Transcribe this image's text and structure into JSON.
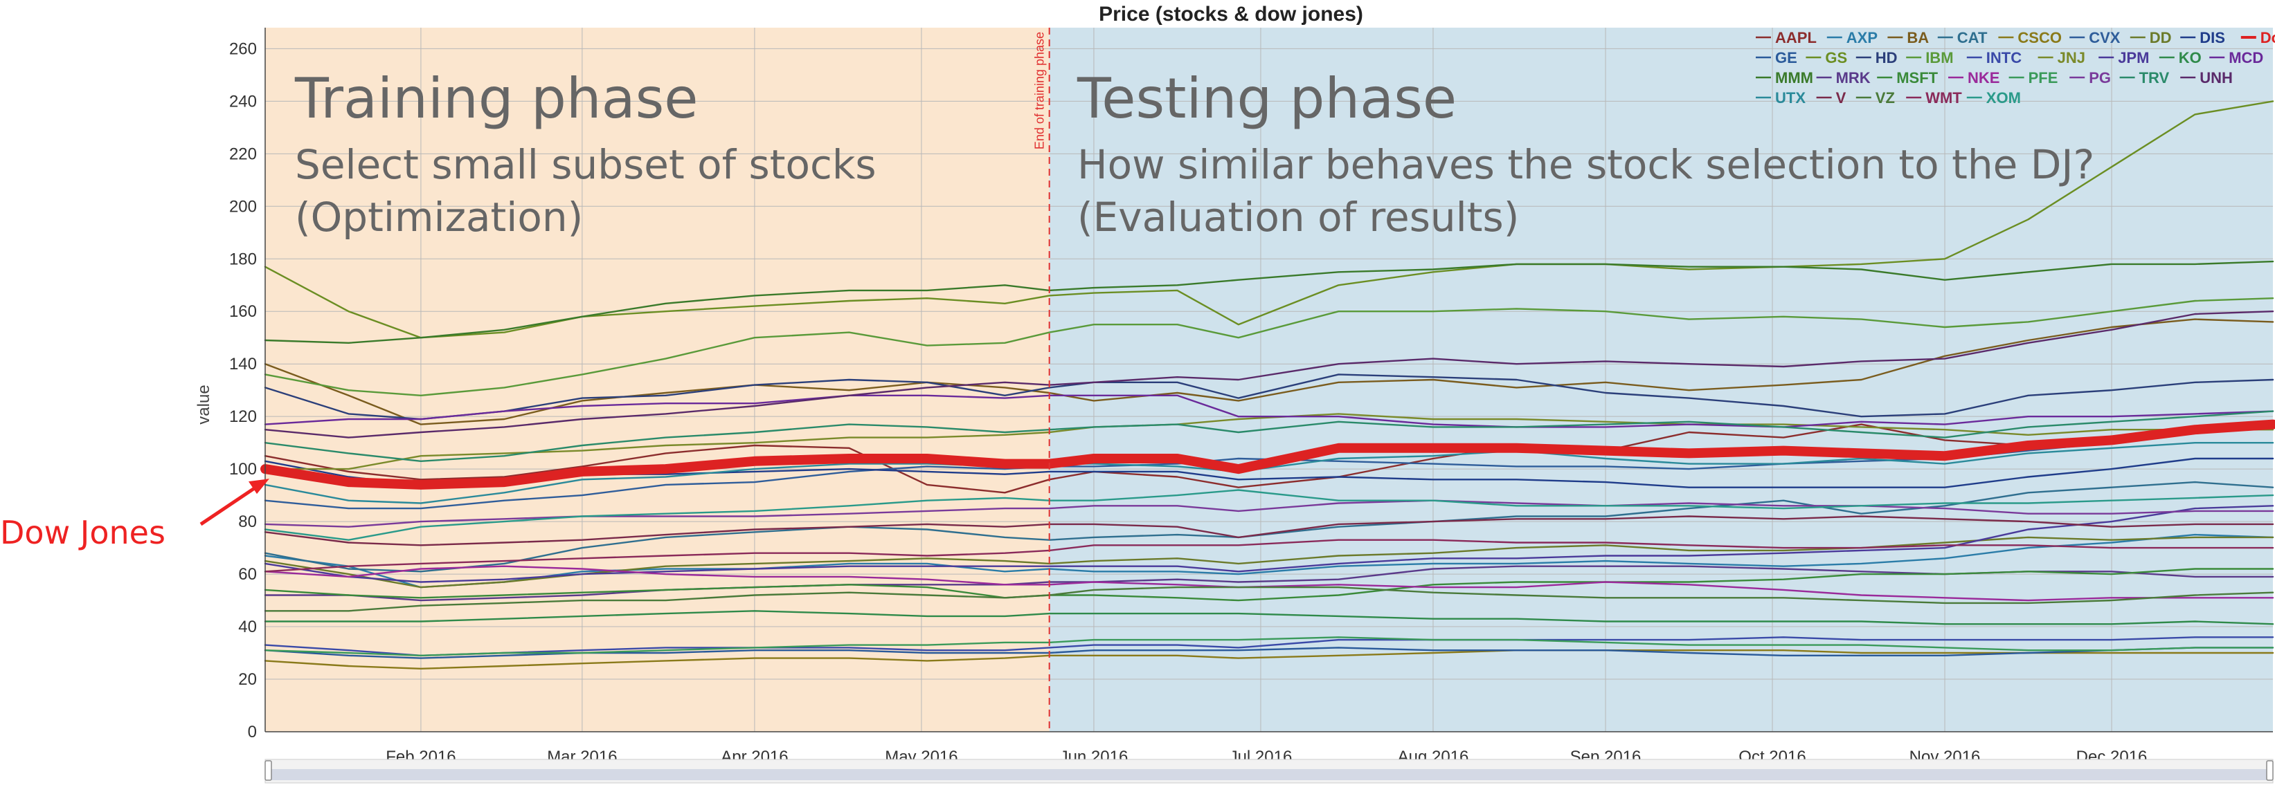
{
  "chart_data": {
    "type": "line",
    "title": "Price (stocks & dow jones)",
    "ylabel": "value",
    "xlabel": "",
    "ylim": [
      0,
      268
    ],
    "yticks": [
      0,
      20,
      40,
      60,
      80,
      100,
      120,
      140,
      160,
      180,
      200,
      220,
      240,
      260
    ],
    "xlim": [
      "2016-01-04",
      "2016-12-30"
    ],
    "xticks": [
      {
        "date": "2016-02-01",
        "label": "Feb 2016"
      },
      {
        "date": "2016-03-01",
        "label": "Mar 2016"
      },
      {
        "date": "2016-04-01",
        "label": "Apr 2016"
      },
      {
        "date": "2016-05-01",
        "label": "May 2016"
      },
      {
        "date": "2016-06-01",
        "label": "Jun 2016"
      },
      {
        "date": "2016-07-01",
        "label": "Jul 2016"
      },
      {
        "date": "2016-08-01",
        "label": "Aug 2016"
      },
      {
        "date": "2016-09-01",
        "label": "Sep 2016"
      },
      {
        "date": "2016-10-01",
        "label": "Oct 2016"
      },
      {
        "date": "2016-11-01",
        "label": "Nov 2016"
      },
      {
        "date": "2016-12-01",
        "label": "Dec 2016"
      }
    ],
    "grid": true,
    "legend_position": "top-right",
    "training_end": "2016-05-24",
    "phases": {
      "training": {
        "title": "Training phase",
        "line1": "Select small subset of stocks",
        "line2": "(Optimization)",
        "color": "#fbe6cf"
      },
      "testing": {
        "title": "Testing phase",
        "line1": "How similar behaves the stock selection to the DJ?",
        "line2": "(Evaluation of results)",
        "color": "#cfe2ec"
      }
    },
    "training_end_label": "End of training phase",
    "annotation": {
      "label": "Dow Jones",
      "color": "#ee2222"
    },
    "x": [
      "2016-01-04",
      "2016-01-19",
      "2016-02-01",
      "2016-02-16",
      "2016-03-01",
      "2016-03-16",
      "2016-04-01",
      "2016-04-18",
      "2016-05-02",
      "2016-05-16",
      "2016-05-24",
      "2016-06-01",
      "2016-06-16",
      "2016-06-27",
      "2016-07-15",
      "2016-08-01",
      "2016-08-16",
      "2016-09-01",
      "2016-09-16",
      "2016-10-03",
      "2016-10-17",
      "2016-11-01",
      "2016-11-16",
      "2016-12-01",
      "2016-12-16",
      "2016-12-30"
    ],
    "series": [
      {
        "name": "AAPL",
        "color": "#8c2d2d",
        "values": [
          105,
          99,
          96,
          97,
          101,
          106,
          109,
          108,
          94,
          91,
          96,
          99,
          97,
          93,
          97,
          104,
          109,
          107,
          114,
          112,
          117,
          111,
          109,
          110,
          115,
          116
        ]
      },
      {
        "name": "AXP",
        "color": "#2a7ca8",
        "values": [
          67,
          63,
          55,
          57,
          61,
          62,
          62,
          64,
          64,
          61,
          62,
          61,
          61,
          60,
          63,
          64,
          64,
          65,
          64,
          63,
          64,
          66,
          70,
          72,
          75,
          74
        ]
      },
      {
        "name": "BA",
        "color": "#7a5c1e",
        "values": [
          140,
          128,
          117,
          119,
          126,
          129,
          132,
          130,
          133,
          131,
          129,
          126,
          129,
          126,
          133,
          134,
          131,
          133,
          130,
          132,
          134,
          143,
          149,
          154,
          157,
          156
        ]
      },
      {
        "name": "CAT",
        "color": "#2f6f8f",
        "values": [
          68,
          62,
          61,
          64,
          70,
          74,
          76,
          78,
          77,
          74,
          73,
          74,
          75,
          74,
          78,
          80,
          82,
          82,
          85,
          88,
          83,
          86,
          91,
          93,
          95,
          93
        ]
      },
      {
        "name": "CSCO",
        "color": "#8a7a1a",
        "values": [
          27,
          25,
          24,
          25,
          26,
          27,
          28,
          28,
          27,
          28,
          29,
          29,
          29,
          28,
          29,
          30,
          31,
          31,
          31,
          31,
          30,
          30,
          30,
          30,
          30,
          30
        ]
      },
      {
        "name": "CVX",
        "color": "#2f5d9a",
        "values": [
          88,
          85,
          85,
          88,
          90,
          94,
          95,
          99,
          101,
          100,
          101,
          101,
          102,
          104,
          103,
          102,
          101,
          101,
          100,
          102,
          103,
          104,
          107,
          110,
          115,
          117
        ]
      },
      {
        "name": "DD",
        "color": "#6b7a2a",
        "values": [
          65,
          60,
          55,
          57,
          60,
          63,
          64,
          65,
          66,
          65,
          64,
          65,
          66,
          64,
          67,
          68,
          70,
          71,
          69,
          69,
          70,
          72,
          74,
          73,
          74,
          74
        ]
      },
      {
        "name": "DIS",
        "color": "#1f3c8a",
        "values": [
          103,
          97,
          94,
          95,
          98,
          98,
          99,
          100,
          99,
          98,
          99,
          99,
          99,
          96,
          97,
          96,
          96,
          95,
          93,
          93,
          93,
          93,
          97,
          100,
          104,
          104
        ]
      },
      {
        "name": "DowJones",
        "color": "#dd2222",
        "values": [
          100,
          95,
          94,
          95,
          99,
          100,
          103,
          104,
          104,
          102,
          102,
          104,
          104,
          100,
          108,
          108,
          108,
          107,
          106,
          107,
          106,
          105,
          109,
          111,
          115,
          117
        ]
      },
      {
        "name": "GE",
        "color": "#2a5a9a",
        "values": [
          31,
          29,
          28,
          29,
          30,
          30,
          31,
          31,
          30,
          30,
          30,
          31,
          31,
          31,
          32,
          31,
          31,
          31,
          30,
          29,
          29,
          29,
          30,
          31,
          32,
          32
        ]
      },
      {
        "name": "GS",
        "color": "#6b8e23",
        "values": [
          177,
          160,
          150,
          152,
          158,
          160,
          162,
          164,
          165,
          163,
          166,
          167,
          168,
          155,
          170,
          175,
          178,
          178,
          176,
          177,
          178,
          180,
          195,
          215,
          235,
          240
        ]
      },
      {
        "name": "HD",
        "color": "#2b3f7a",
        "values": [
          131,
          121,
          119,
          122,
          127,
          128,
          132,
          134,
          133,
          128,
          131,
          133,
          133,
          127,
          136,
          135,
          134,
          129,
          127,
          124,
          120,
          121,
          128,
          130,
          133,
          134
        ]
      },
      {
        "name": "IBM",
        "color": "#5a9a3a",
        "values": [
          136,
          130,
          128,
          131,
          136,
          142,
          150,
          152,
          147,
          148,
          152,
          155,
          155,
          150,
          160,
          160,
          161,
          160,
          157,
          158,
          157,
          154,
          156,
          160,
          164,
          165
        ]
      },
      {
        "name": "INTC",
        "color": "#3a4aa8",
        "values": [
          33,
          31,
          29,
          30,
          31,
          32,
          32,
          32,
          31,
          31,
          32,
          33,
          33,
          32,
          35,
          35,
          35,
          35,
          35,
          36,
          35,
          35,
          35,
          35,
          36,
          36
        ]
      },
      {
        "name": "JNJ",
        "color": "#7a8a2a",
        "values": [
          100,
          100,
          105,
          106,
          107,
          109,
          110,
          112,
          112,
          113,
          114,
          116,
          117,
          119,
          121,
          119,
          119,
          118,
          117,
          117,
          116,
          115,
          113,
          115,
          115,
          115
        ]
      },
      {
        "name": "JPM",
        "color": "#4a3a9a",
        "values": [
          64,
          59,
          57,
          58,
          60,
          61,
          62,
          63,
          63,
          63,
          63,
          63,
          63,
          61,
          64,
          66,
          66,
          67,
          67,
          68,
          69,
          70,
          77,
          80,
          85,
          86
        ]
      },
      {
        "name": "KO",
        "color": "#2f8a4a",
        "values": [
          42,
          42,
          42,
          43,
          44,
          45,
          46,
          45,
          44,
          44,
          45,
          45,
          45,
          45,
          44,
          43,
          43,
          42,
          42,
          42,
          42,
          41,
          41,
          41,
          42,
          41
        ]
      },
      {
        "name": "MCD",
        "color": "#6a2a9a",
        "values": [
          117,
          119,
          119,
          122,
          124,
          125,
          125,
          128,
          128,
          127,
          128,
          128,
          128,
          120,
          120,
          117,
          116,
          116,
          117,
          116,
          118,
          117,
          120,
          120,
          121,
          122
        ]
      },
      {
        "name": "MMM",
        "color": "#3a7a2a",
        "values": [
          149,
          148,
          150,
          153,
          158,
          163,
          166,
          168,
          168,
          170,
          168,
          169,
          170,
          172,
          175,
          176,
          178,
          178,
          177,
          177,
          176,
          172,
          175,
          178,
          178,
          179
        ]
      },
      {
        "name": "MRK",
        "color": "#5a3a8a",
        "values": [
          52,
          52,
          50,
          51,
          52,
          54,
          55,
          56,
          56,
          56,
          57,
          57,
          58,
          57,
          58,
          62,
          63,
          63,
          63,
          62,
          61,
          60,
          61,
          61,
          59,
          59
        ]
      },
      {
        "name": "MSFT",
        "color": "#3a8a3a",
        "values": [
          54,
          52,
          51,
          52,
          53,
          54,
          55,
          56,
          55,
          51,
          52,
          52,
          51,
          50,
          52,
          56,
          57,
          57,
          57,
          58,
          60,
          60,
          61,
          60,
          62,
          62
        ]
      },
      {
        "name": "NKE",
        "color": "#9a2a9a",
        "values": [
          61,
          59,
          62,
          63,
          62,
          60,
          59,
          59,
          58,
          56,
          56,
          57,
          56,
          55,
          56,
          55,
          55,
          57,
          56,
          54,
          52,
          51,
          50,
          51,
          51,
          51
        ]
      },
      {
        "name": "PFE",
        "color": "#3a9a5a",
        "values": [
          31,
          30,
          29,
          30,
          30,
          31,
          32,
          33,
          33,
          34,
          34,
          35,
          35,
          35,
          36,
          35,
          35,
          34,
          33,
          33,
          33,
          32,
          31,
          31,
          32,
          32
        ]
      },
      {
        "name": "PG",
        "color": "#7a3a9a",
        "values": [
          79,
          78,
          80,
          81,
          82,
          82,
          82,
          83,
          84,
          85,
          85,
          86,
          86,
          84,
          87,
          88,
          87,
          86,
          87,
          86,
          86,
          85,
          83,
          83,
          84,
          84
        ]
      },
      {
        "name": "TRV",
        "color": "#2a8a6a",
        "values": [
          110,
          106,
          103,
          105,
          109,
          112,
          114,
          117,
          116,
          114,
          115,
          116,
          117,
          114,
          118,
          116,
          116,
          117,
          118,
          116,
          114,
          112,
          116,
          118,
          120,
          122
        ]
      },
      {
        "name": "UNH",
        "color": "#5a2a6a",
        "values": [
          115,
          112,
          114,
          116,
          119,
          121,
          124,
          128,
          131,
          133,
          132,
          133,
          135,
          134,
          140,
          142,
          140,
          141,
          140,
          139,
          141,
          142,
          148,
          153,
          159,
          160
        ]
      },
      {
        "name": "UTX",
        "color": "#2a8a9a",
        "values": [
          94,
          88,
          87,
          91,
          96,
          97,
          100,
          102,
          102,
          101,
          102,
          102,
          101,
          99,
          104,
          105,
          107,
          104,
          102,
          102,
          104,
          102,
          106,
          108,
          110,
          110
        ]
      },
      {
        "name": "V",
        "color": "#7a2a4a",
        "values": [
          76,
          72,
          71,
          72,
          73,
          75,
          77,
          78,
          79,
          78,
          79,
          79,
          78,
          74,
          79,
          80,
          81,
          81,
          82,
          81,
          82,
          81,
          80,
          78,
          79,
          79
        ]
      },
      {
        "name": "VZ",
        "color": "#4a7a3a",
        "values": [
          46,
          46,
          48,
          49,
          50,
          50,
          52,
          53,
          52,
          51,
          52,
          54,
          55,
          55,
          55,
          53,
          52,
          51,
          51,
          51,
          50,
          49,
          49,
          50,
          52,
          53
        ]
      },
      {
        "name": "WMT",
        "color": "#8a2a5a",
        "values": [
          61,
          63,
          64,
          65,
          66,
          67,
          68,
          68,
          67,
          68,
          69,
          71,
          71,
          71,
          73,
          73,
          72,
          72,
          71,
          70,
          70,
          71,
          71,
          70,
          70,
          70
        ]
      },
      {
        "name": "XOM",
        "color": "#2a9a8a",
        "values": [
          77,
          73,
          78,
          80,
          82,
          83,
          84,
          86,
          88,
          89,
          88,
          88,
          90,
          92,
          88,
          88,
          86,
          86,
          86,
          85,
          86,
          87,
          87,
          88,
          89,
          90
        ]
      }
    ]
  }
}
